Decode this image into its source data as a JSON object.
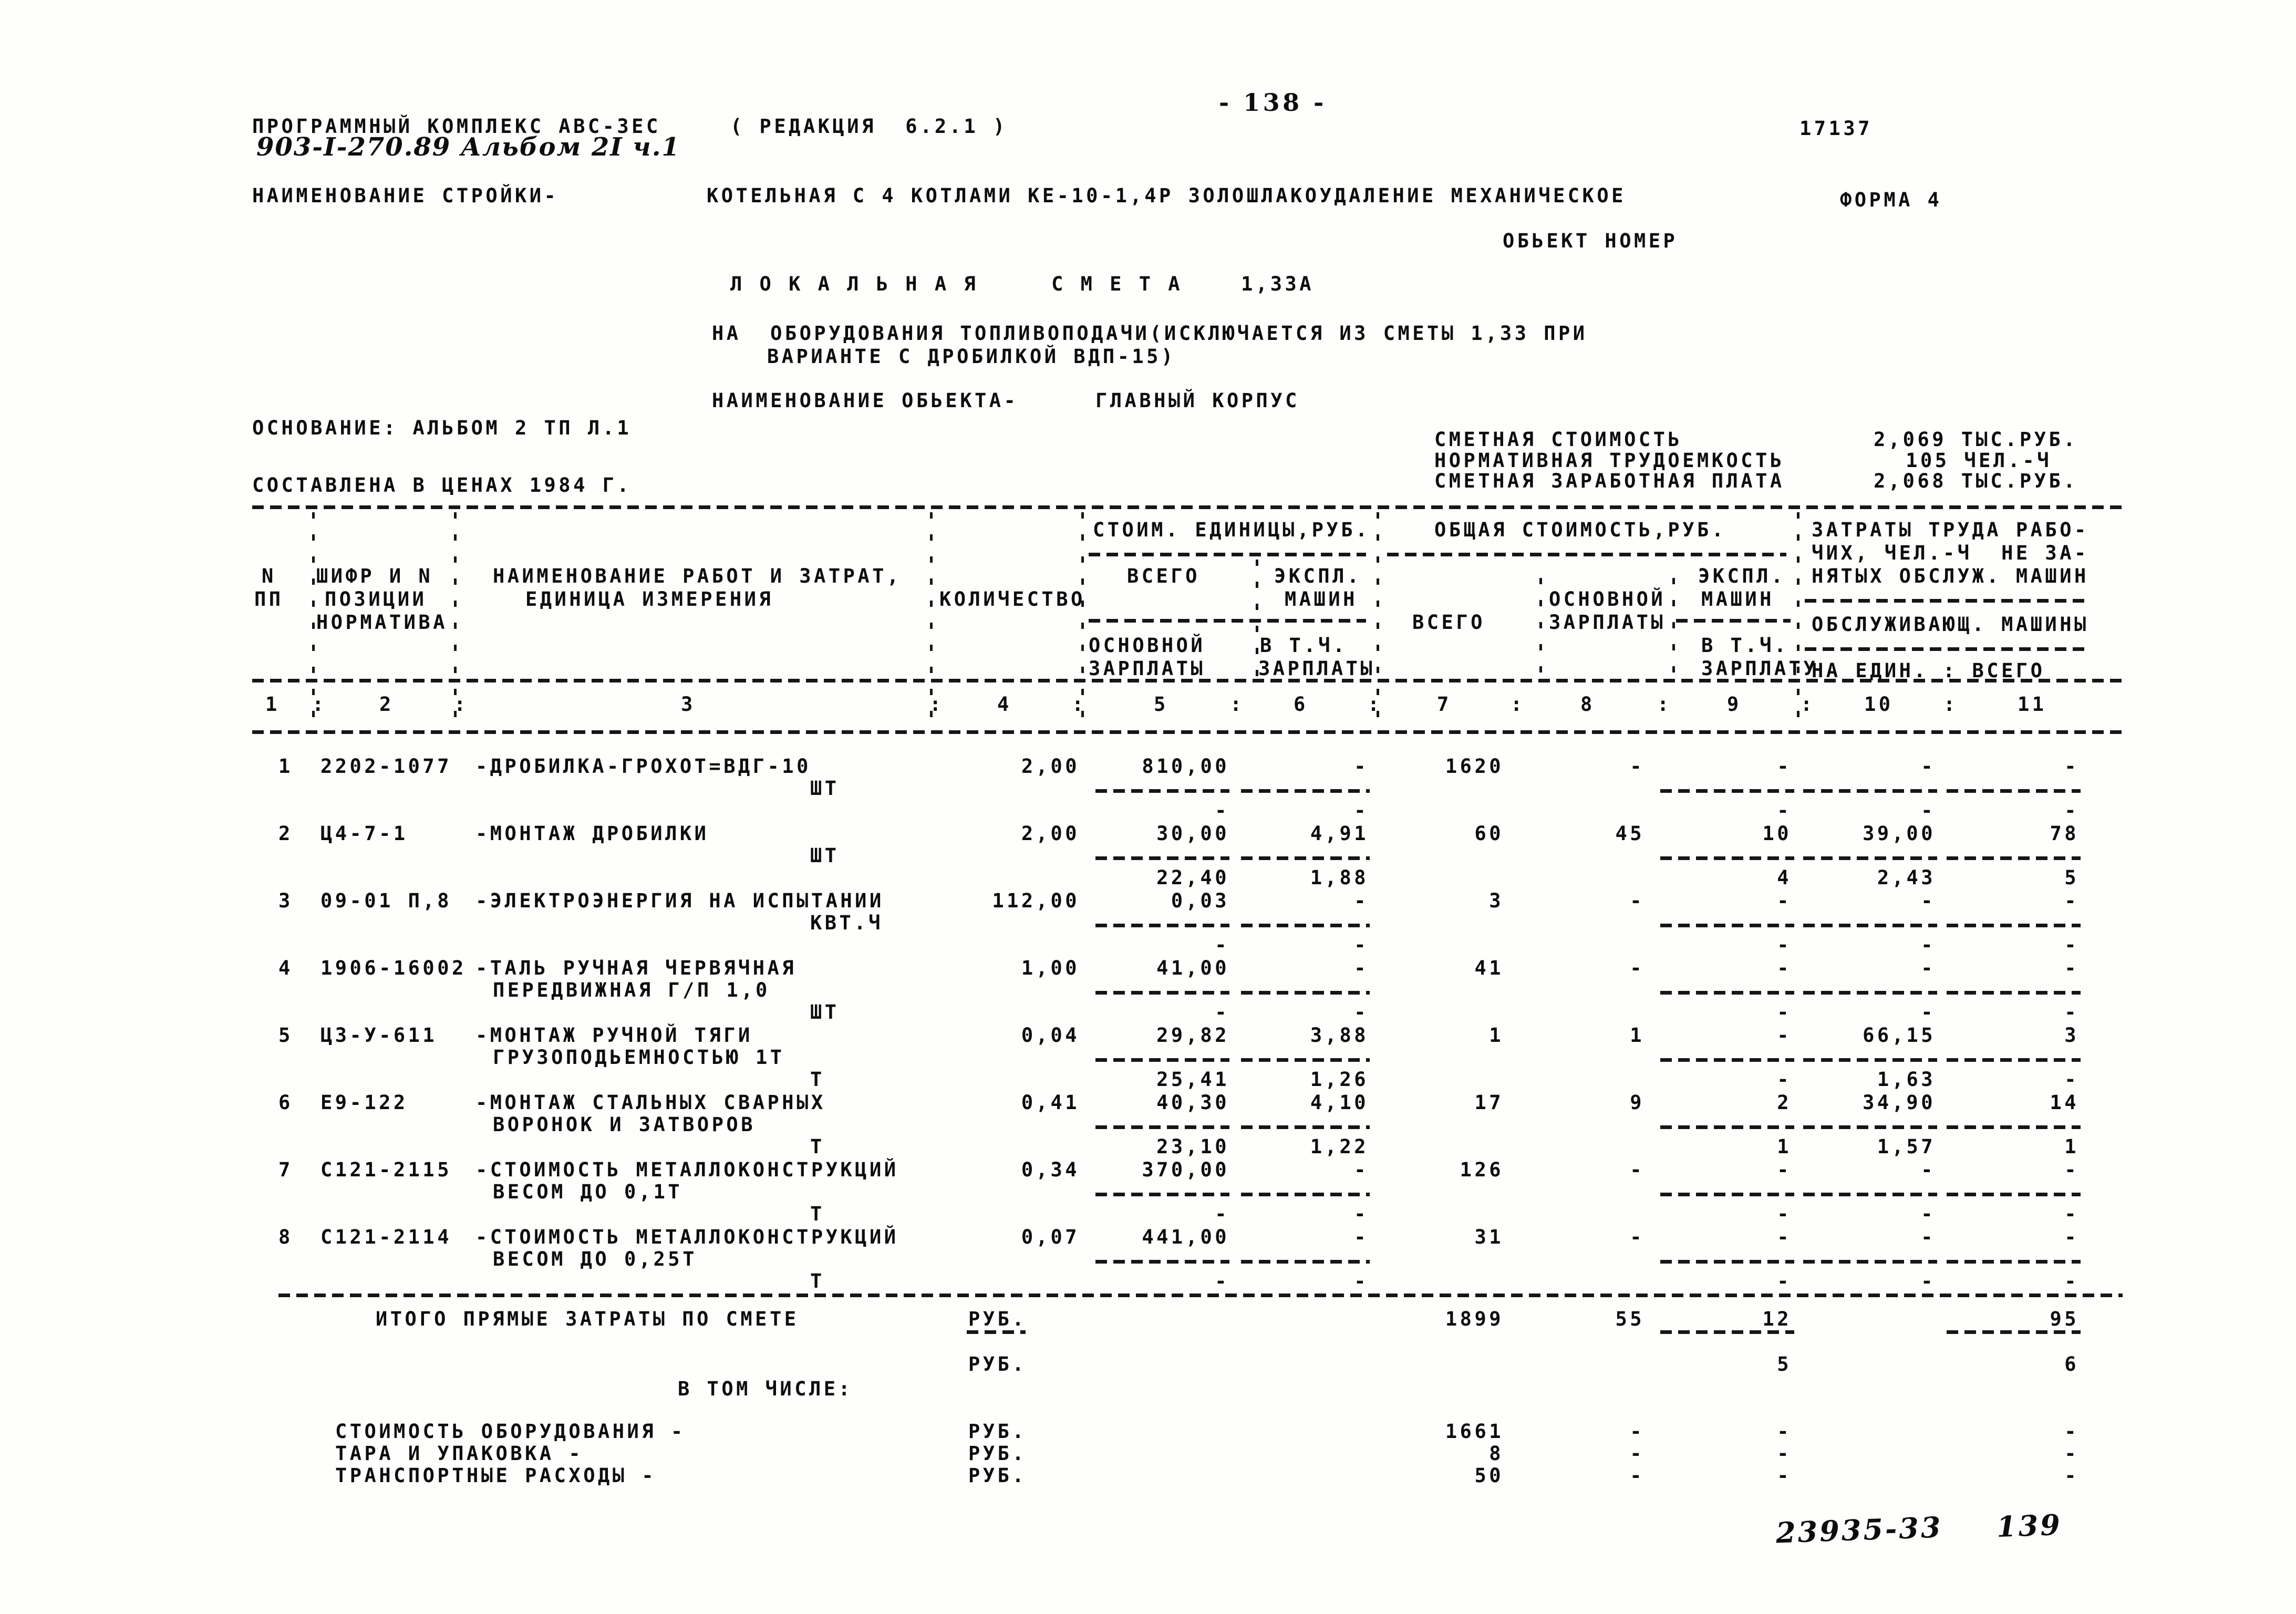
{
  "page": {
    "page_number_top": "- 138 -",
    "doc_number": "17137",
    "program_line": "ПРОГРАММНЫЙ КОМПЛЕКС АВС-3ЕС",
    "edition": "( РЕДАКЦИЯ  6.2.1 )",
    "album_note": "903-I-270.89 Альбом 2I ч.1",
    "forma": "ФОРМА 4",
    "handwritten_code": "23935-33",
    "handwritten_page": "139"
  },
  "header": {
    "stroyka_label": "НАИМЕНОВАНИЕ СТРОЙКИ-",
    "stroyka_value": "КОТЕЛЬНАЯ С 4 КОТЛАМИ КЕ-10-1,4Р ЗОЛОШЛАКОУДАЛЕНИЕ МЕХАНИЧЕСКОЕ",
    "object_number_label": "ОБЬЕКТ НОМЕР",
    "title": "Л О К А Л Ь Н А Я     С М Е Т А    1,33А",
    "subject_line1": "НА  ОБОРУДОВАНИЯ ТОПЛИВОПОДАЧИ(ИСКЛЮЧАЕТСЯ ИЗ СМЕТЫ 1,33 ПРИ",
    "subject_line2": "ВАРИАНТЕ С ДРОБИЛКОЙ ВДП-15)",
    "object_label": "НАИМЕНОВАНИЕ ОБЬЕКТА-",
    "object_value": "ГЛАВНЫЙ КОРПУС",
    "basis": "ОСНОВАНИЕ: АЛЬБОМ 2 ТП Л.1",
    "prices_note": "СОСТАВЛЕНА В ЦЕНАХ 1984 Г.",
    "totals": [
      {
        "label": "СМЕТНАЯ СТОИМОСТЬ",
        "value": "2,069 ТЫС.РУБ."
      },
      {
        "label": "НОРМАТИВНАЯ ТРУДОЕМКОСТЬ",
        "value": "105 ЧЕЛ.-Ч"
      },
      {
        "label": "СМЕТНАЯ ЗАРАБОТНАЯ ПЛАТА",
        "value": "2,068 ТЫС.РУБ."
      }
    ]
  },
  "table": {
    "header": {
      "col1_l1": "N",
      "col1_l2": "ПП",
      "col2_l1": "ШИФР И N",
      "col2_l2": "ПОЗИЦИИ",
      "col2_l3": "НОРМАТИВА",
      "col3_l1": "НАИМЕНОВАНИЕ РАБОТ И ЗАТРАТ,",
      "col3_l2": "ЕДИНИЦА ИЗМЕРЕНИЯ",
      "col4": "КОЛИЧЕСТВО",
      "unit_cost_group": "СТОИМ. ЕДИНИЦЫ,РУБ.",
      "total_cost_group": "ОБЩАЯ СТОИМОСТЬ,РУБ.",
      "uc_all": "ВСЕГО",
      "uc_mach_l1": "ЭКСПЛ.",
      "uc_mach_l2": "МАШИН",
      "uc_base_l1": "ОСНОВНОЙ",
      "uc_base_l2": "ЗАРПЛАТЫ",
      "uc_vtch_l1": "В Т.Ч.",
      "uc_vtch_l2": "ЗАРПЛАТЫ",
      "tc_all": "ВСЕГО",
      "tc_base_l1": "ОСНОВНОЙ",
      "tc_base_l2": "ЗАРПЛАТЫ",
      "tc_mach_l1": "ЭКСПЛ.",
      "tc_mach_l2": "МАШИН",
      "tc_vtch_l1": "В Т.Ч.",
      "tc_vtch_l2": "ЗАРПЛАТУ",
      "labor_l1": "ЗАТРАТЫ ТРУДА РАБО-",
      "labor_l2": "ЧИХ, ЧЕЛ.-Ч  НЕ ЗА-",
      "labor_l3": "НЯТЫХ ОБСЛУЖ. МАШИН",
      "labor_l4": "ОБСЛУЖИВАЮЩ. МАШИНЫ",
      "labor_l5": "НА ЕДИН. : ВСЕГО"
    },
    "col_numbers": [
      "1",
      "2",
      "3",
      "4",
      "5",
      "6",
      "7",
      "8",
      "9",
      "10",
      "11"
    ],
    "rows": [
      {
        "n": "1",
        "code": "2202-1077",
        "name1": "-ДРОБИЛКА-ГРОХОТ=ВДГ-10",
        "name2": "",
        "unit": "ШТ",
        "qty": "2,00",
        "c5": "810,00",
        "c6": "-",
        "c7": "1620",
        "c8": "-",
        "c9": "-",
        "c10": "-",
        "c11": "-",
        "s5": "-",
        "s6": "-",
        "s9": "-",
        "s10": "-",
        "s11": "-"
      },
      {
        "n": "2",
        "code": "Ц4-7-1",
        "name1": "-МОНТАЖ ДРОБИЛКИ",
        "name2": "",
        "unit": "ШТ",
        "qty": "2,00",
        "c5": "30,00",
        "c6": "4,91",
        "c7": "60",
        "c8": "45",
        "c9": "10",
        "c10": "39,00",
        "c11": "78",
        "s5": "22,40",
        "s6": "1,88",
        "s9": "4",
        "s10": "2,43",
        "s11": "5"
      },
      {
        "n": "3",
        "code": "09-01 П,8",
        "name1": "-ЭЛЕКТРОЭНЕРГИЯ НА ИСПЫТАНИИ",
        "name2": "",
        "unit": "КВТ.Ч",
        "qty": "112,00",
        "c5": "0,03",
        "c6": "-",
        "c7": "3",
        "c8": "-",
        "c9": "-",
        "c10": "-",
        "c11": "-",
        "s5": "-",
        "s6": "-",
        "s9": "-",
        "s10": "-",
        "s11": "-"
      },
      {
        "n": "4",
        "code": "1906-16002",
        "name1": "-ТАЛЬ РУЧНАЯ ЧЕРВЯЧНАЯ",
        "name2": "ПЕРЕДВИЖНАЯ Г/П 1,0",
        "unit": "ШТ",
        "qty": "1,00",
        "c5": "41,00",
        "c6": "-",
        "c7": "41",
        "c8": "-",
        "c9": "-",
        "c10": "-",
        "c11": "-",
        "s5": "-",
        "s6": "-",
        "s9": "-",
        "s10": "-",
        "s11": "-"
      },
      {
        "n": "5",
        "code": "Ц3-У-611",
        "name1": "-МОНТАЖ РУЧНОЙ ТЯГИ",
        "name2": "ГРУЗОПОДЬЕМНОСТЬЮ 1Т",
        "unit": "Т",
        "qty": "0,04",
        "c5": "29,82",
        "c6": "3,88",
        "c7": "1",
        "c8": "1",
        "c9": "-",
        "c10": "66,15",
        "c11": "3",
        "s5": "25,41",
        "s6": "1,26",
        "s9": "-",
        "s10": "1,63",
        "s11": "-"
      },
      {
        "n": "6",
        "code": "Е9-122",
        "name1": "-МОНТАЖ СТАЛЬНЫХ СВАРНЫХ",
        "name2": "ВОРОНОК И ЗАТВОРОВ",
        "unit": "Т",
        "qty": "0,41",
        "c5": "40,30",
        "c6": "4,10",
        "c7": "17",
        "c8": "9",
        "c9": "2",
        "c10": "34,90",
        "c11": "14",
        "s5": "23,10",
        "s6": "1,22",
        "s9": "1",
        "s10": "1,57",
        "s11": "1"
      },
      {
        "n": "7",
        "code": "С121-2115",
        "name1": "-СТОИМОСТЬ МЕТАЛЛОКОНСТРУКЦИЙ",
        "name2": "ВЕСОМ ДО 0,1Т",
        "unit": "Т",
        "qty": "0,34",
        "c5": "370,00",
        "c6": "-",
        "c7": "126",
        "c8": "-",
        "c9": "-",
        "c10": "-",
        "c11": "-",
        "s5": "-",
        "s6": "-",
        "s9": "-",
        "s10": "-",
        "s11": "-"
      },
      {
        "n": "8",
        "code": "С121-2114",
        "name1": "-СТОИМОСТЬ МЕТАЛЛОКОНСТРУКЦИЙ",
        "name2": "ВЕСОМ ДО 0,25Т",
        "unit": "Т",
        "qty": "0,07",
        "c5": "441,00",
        "c6": "-",
        "c7": "31",
        "c8": "-",
        "c9": "-",
        "c10": "-",
        "c11": "-",
        "s5": "-",
        "s6": "-",
        "s9": "-",
        "s10": "-",
        "s11": "-"
      }
    ],
    "totals_row": {
      "label": "ИТОГО ПРЯМЫЕ ЗАТРАТЫ ПО СМЕТЕ",
      "unit": "РУБ.",
      "c7": "1899",
      "c8": "55",
      "c9": "12",
      "c11": "95",
      "sub_unit": "РУБ.",
      "s9": "5",
      "s11": "6"
    },
    "including_label": "В ТОМ ЧИСЛЕ:",
    "including_rows": [
      {
        "label": "СТОИМОСТЬ ОБОРУДОВАНИЯ -",
        "unit": "РУБ.",
        "c7": "1661",
        "c8": "-",
        "c9": "-",
        "c11": "-"
      },
      {
        "label": "ТАРА И УПАКОВКА -",
        "unit": "РУБ.",
        "c7": "8",
        "c8": "-",
        "c9": "-",
        "c11": "-"
      },
      {
        "label": "ТРАНСПОРТНЫЕ РАСХОДЫ -",
        "unit": "РУБ.",
        "c7": "50",
        "c8": "-",
        "c9": "-",
        "c11": "-"
      }
    ]
  }
}
